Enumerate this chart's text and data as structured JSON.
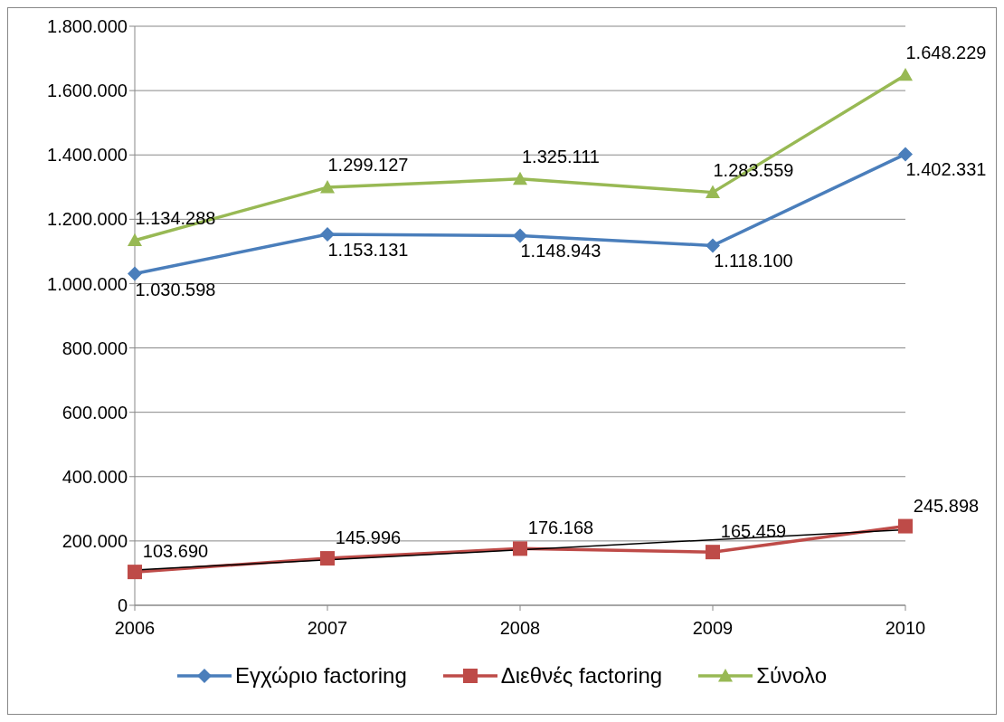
{
  "chart_data": {
    "type": "line",
    "categories": [
      "2006",
      "2007",
      "2008",
      "2009",
      "2010"
    ],
    "series": [
      {
        "name": "Εγχώριο factoring",
        "color": "#4a7ebb",
        "marker": "diamond",
        "values": [
          1030598,
          1153131,
          1148943,
          1118100,
          1402331
        ],
        "value_labels": [
          "1.030.598",
          "1.153.131",
          "1.148.943",
          "1.118.100",
          "1.402.331"
        ]
      },
      {
        "name": "Διεθνές factoring",
        "color": "#be4b48",
        "marker": "square",
        "values": [
          103690,
          145996,
          176168,
          165459,
          245898
        ],
        "value_labels": [
          "103.690",
          "145.996",
          "176.168",
          "165.459",
          "245.898"
        ]
      },
      {
        "name": "Σύνολο",
        "color": "#98b954",
        "marker": "triangle",
        "values": [
          1134288,
          1299127,
          1325111,
          1283559,
          1648229
        ],
        "value_labels": [
          "1.134.288",
          "1.299.127",
          "1.325.111",
          "1.283.559",
          "1.648.229"
        ]
      },
      {
        "type": "line",
        "color": "#000000",
        "marker": "none",
        "values": [
          110000,
          null,
          null,
          null,
          235000
        ]
      }
    ],
    "ylim": [
      0,
      1800000
    ],
    "yticks": [
      0,
      {
        "value": 200000,
        "label": "200.000"
      },
      {
        "value": 400000,
        "label": "400.000"
      },
      {
        "value": 600000,
        "label": "600.000"
      },
      {
        "value": 800000,
        "label": "800.000"
      },
      {
        "value": 1000000,
        "label": "1.000.000"
      },
      {
        "value": 1200000,
        "label": "1.200.000"
      },
      {
        "value": 1400000,
        "label": "1.400.000"
      },
      {
        "value": 1600000,
        "label": "1.600.000"
      },
      {
        "value": 1800000,
        "label": "1.800.000"
      }
    ],
    "grid": "y",
    "legend": "bottom",
    "line_style": "solid"
  }
}
